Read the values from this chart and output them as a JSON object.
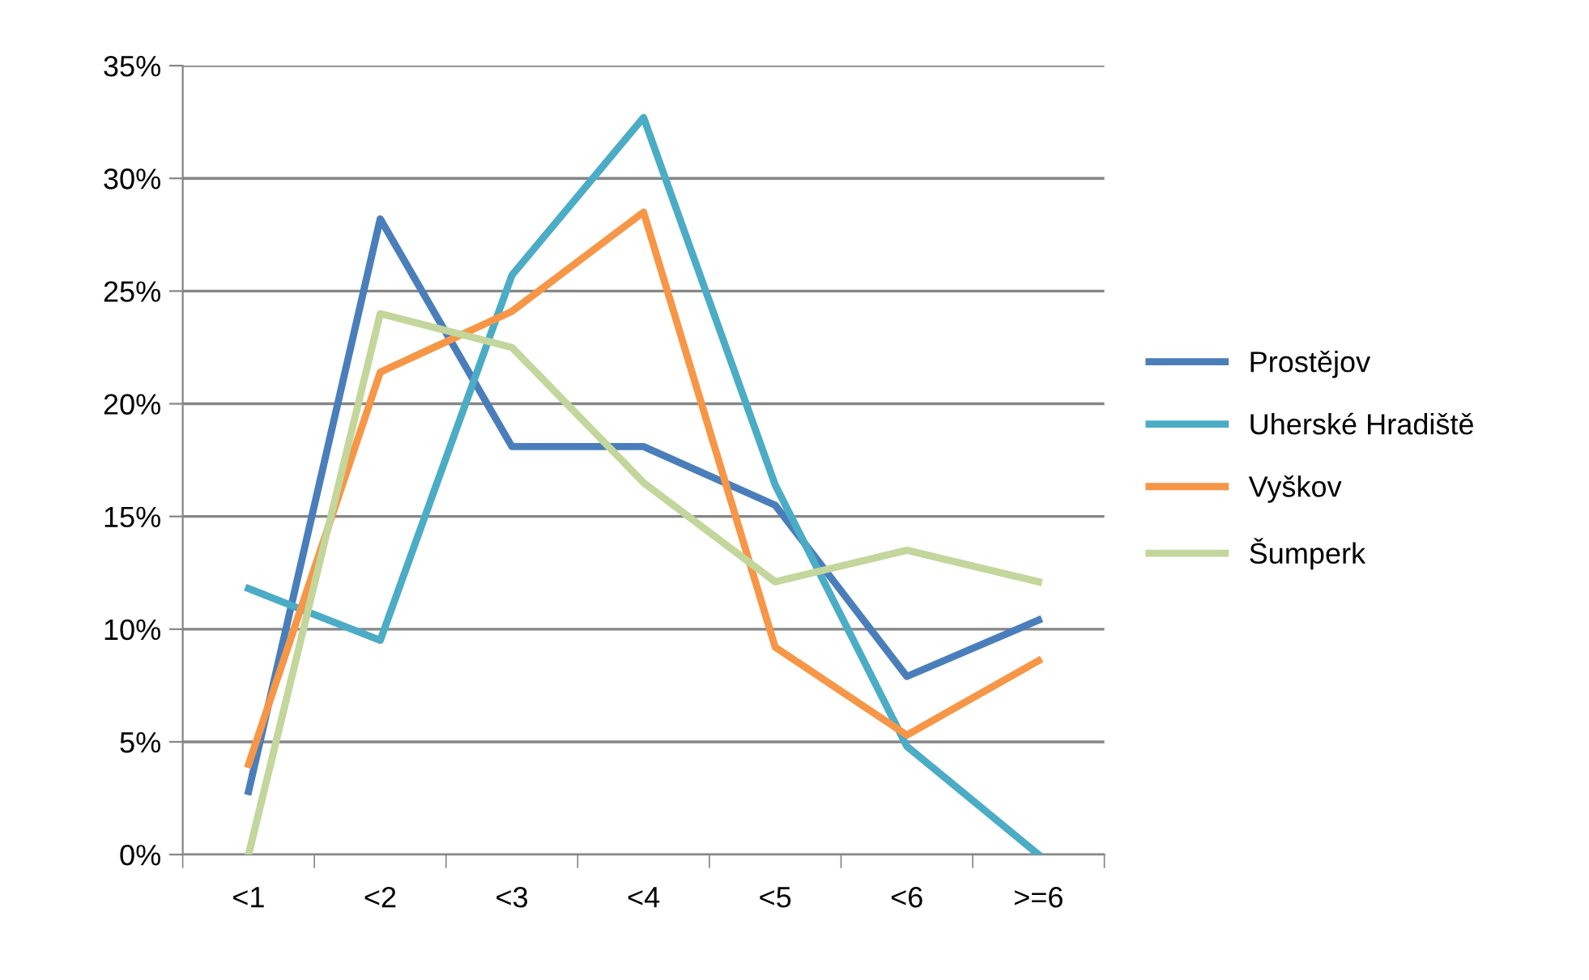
{
  "chart_data": {
    "type": "line",
    "categories": [
      "<1",
      "<2",
      "<3",
      "<4",
      "<5",
      "<6",
      ">=6"
    ],
    "series": [
      {
        "name": "Prostějov",
        "color": "#4a7ebb",
        "values": [
          2.8,
          28.2,
          18.1,
          18.1,
          15.5,
          7.9,
          10.4
        ]
      },
      {
        "name": "Uherské Hradiště",
        "color": "#4bacc6",
        "values": [
          11.8,
          9.5,
          25.7,
          32.7,
          16.4,
          4.8,
          0
        ]
      },
      {
        "name": "Vyškov",
        "color": "#f79646",
        "values": [
          4.0,
          21.4,
          24.1,
          28.5,
          9.2,
          5.3,
          8.6
        ]
      },
      {
        "name": "Šumperk",
        "color": "#c3d69b",
        "values": [
          0,
          24.0,
          22.5,
          16.5,
          12.1,
          13.5,
          12.1
        ]
      }
    ],
    "ylim": [
      0,
      35
    ],
    "yticks": [
      {
        "value": 0,
        "label": "0%"
      },
      {
        "value": 5,
        "label": "5%"
      },
      {
        "value": 10,
        "label": "10%"
      },
      {
        "value": 15,
        "label": "15%"
      },
      {
        "value": 20,
        "label": "20%"
      },
      {
        "value": 25,
        "label": "25%"
      },
      {
        "value": 30,
        "label": "30%"
      },
      {
        "value": 35,
        "label": "35%"
      }
    ],
    "grid": "y",
    "legend": "right",
    "marker": "none",
    "line_style": "solid"
  }
}
